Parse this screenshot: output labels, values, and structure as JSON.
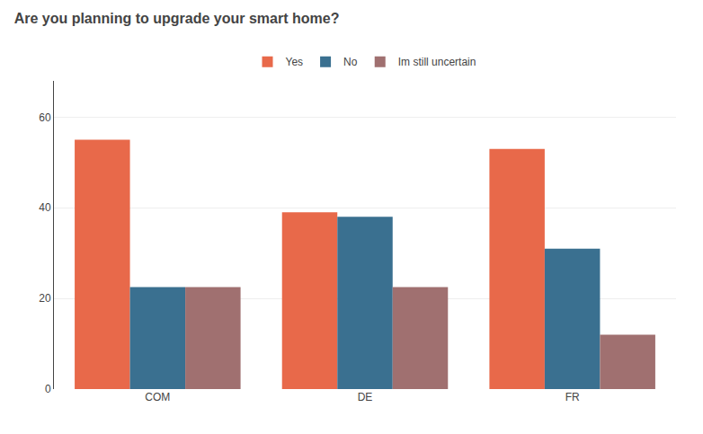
{
  "chart_data": {
    "type": "bar",
    "title": "Are you planning to upgrade your smart home?",
    "categories": [
      "COM",
      "DE",
      "FR"
    ],
    "series": [
      {
        "name": "Yes",
        "color": "#e8694a",
        "values": [
          55,
          39,
          53
        ]
      },
      {
        "name": "No",
        "color": "#3a7090",
        "values": [
          22.5,
          38,
          31
        ]
      },
      {
        "name": "Im still uncertain",
        "color": "#a07070",
        "values": [
          22.5,
          22.5,
          12
        ]
      }
    ],
    "ylim": [
      0,
      68
    ],
    "yticks": [
      0,
      20,
      40,
      60
    ],
    "grid": true,
    "legend": "top"
  }
}
